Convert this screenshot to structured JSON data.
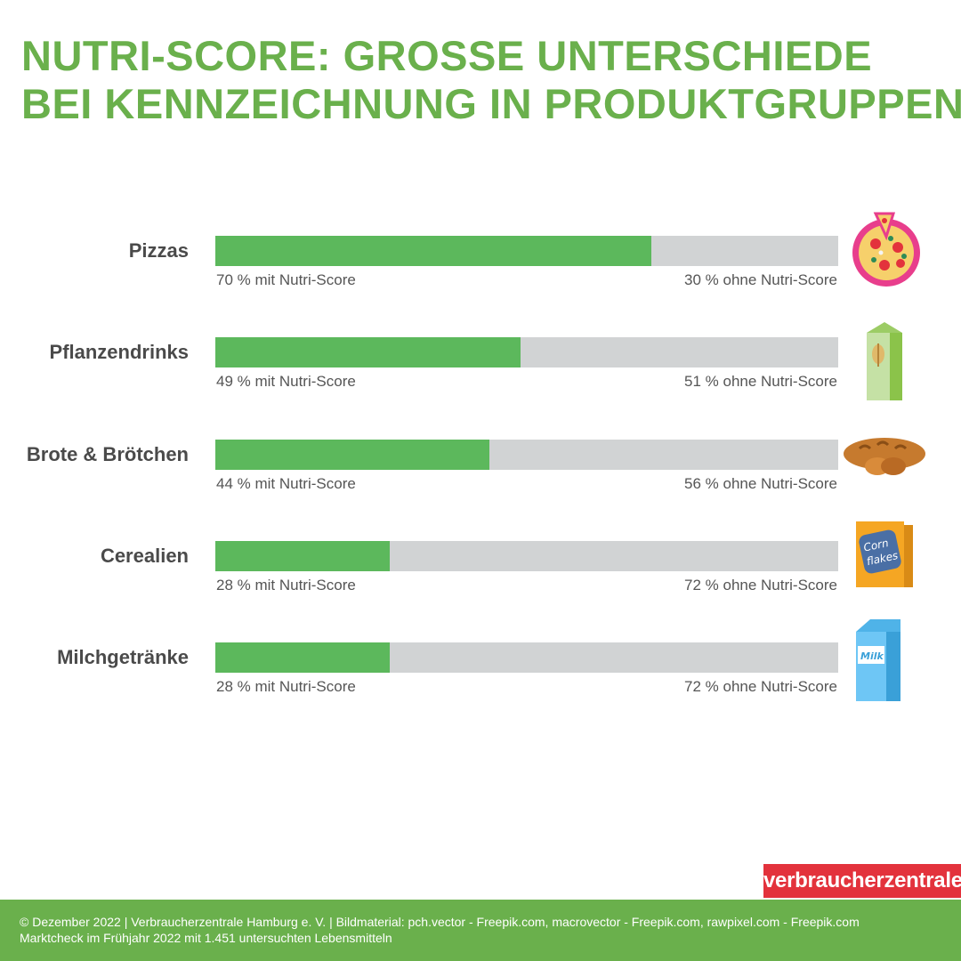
{
  "chart_data": {
    "type": "bar",
    "orientation": "horizontal",
    "stacked": true,
    "title": [
      "NUTRI-SCORE: GROSSE UNTERSCHIEDE",
      "BEI KENNZEICHNUNG IN PRODUKTGRUPPEN"
    ],
    "categories": [
      "Pizzas",
      "Pflanzendrinks",
      "Brote & Brötchen",
      "Cerealien",
      "Milchgetränke"
    ],
    "series": [
      {
        "name": "mit Nutri-Score",
        "values": [
          70,
          49,
          44,
          28,
          28
        ],
        "color": "#5cb85c"
      },
      {
        "name": "ohne Nutri-Score",
        "values": [
          30,
          51,
          56,
          72,
          72
        ],
        "color": "#d1d3d4"
      }
    ],
    "labels_with": [
      "70 % mit Nutri-Score",
      "49 % mit Nutri-Score",
      "44 % mit Nutri-Score",
      "28 % mit Nutri-Score",
      "28 % mit Nutri-Score"
    ],
    "labels_without": [
      "30 % ohne Nutri-Score",
      "51 % ohne Nutri-Score",
      "56 % ohne Nutri-Score",
      "72 % ohne Nutri-Score",
      "72 % ohne Nutri-Score"
    ],
    "icons": [
      "pizza-icon",
      "plant-drink-carton-icon",
      "bread-icon",
      "cornflakes-box-icon",
      "milk-carton-icon"
    ],
    "xlim": [
      0,
      100
    ],
    "grid": false
  },
  "colors": {
    "title": "#6ab04c",
    "bar_with": "#5cb85c",
    "bar_without": "#d1d3d4",
    "logo": "#e3323c",
    "footer": "#6ab04c"
  },
  "logo_text": "verbraucherzentrale",
  "footer": {
    "line1": "© Dezember 2022 | Verbraucherzentrale Hamburg e. V. | Bildmaterial: pch.vector - Freepik.com, macrovector - Freepik.com, rawpixel.com - Freepik.com",
    "line2": "Marktcheck im Frühjahr 2022 mit 1.451 untersuchten Lebensmitteln"
  }
}
